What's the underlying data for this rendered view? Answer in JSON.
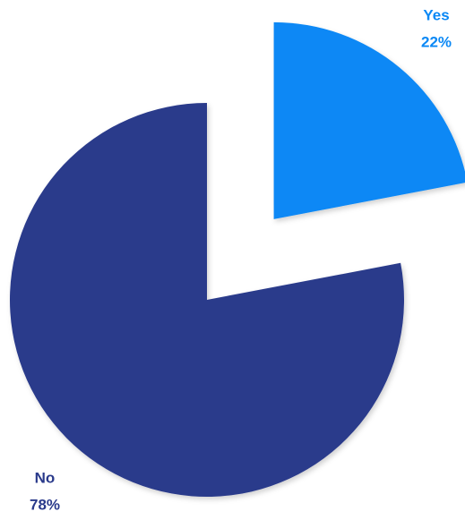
{
  "chart_data": {
    "type": "pie",
    "categories": [
      "Yes",
      "No"
    ],
    "values": [
      22,
      78
    ],
    "value_labels": [
      "22%",
      "78%"
    ],
    "colors": [
      "#0a88f5",
      "#2a3a8b"
    ]
  }
}
